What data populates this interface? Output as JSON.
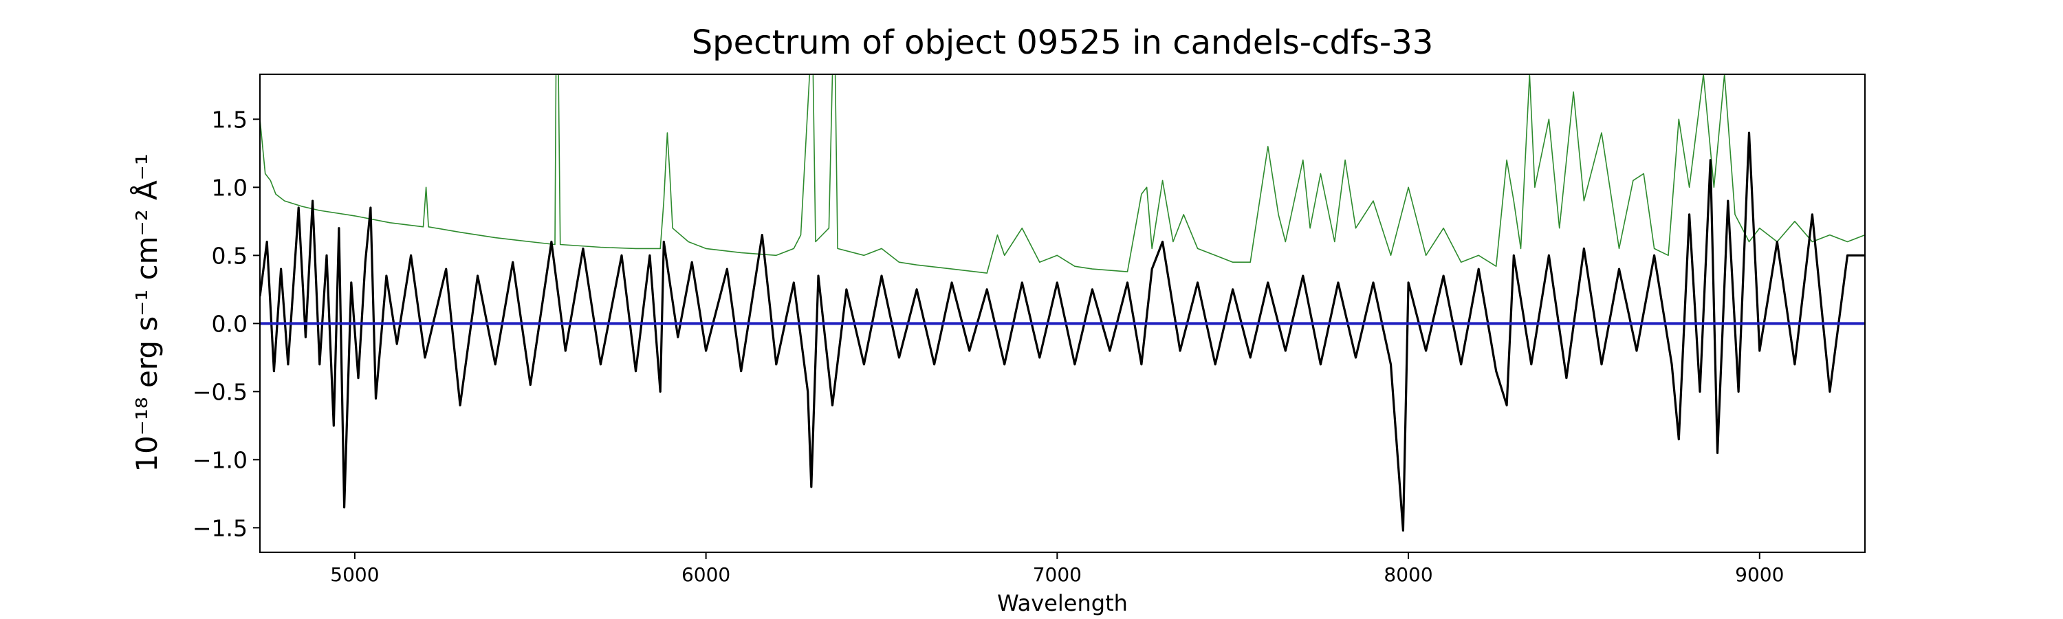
{
  "chart_data": {
    "type": "line",
    "title": "Spectrum of object 09525 in candels-cdfs-33",
    "xlabel": "Wavelength",
    "ylabel": "10⁻¹⁸ erg s⁻¹ cm⁻² Å⁻¹",
    "xlim": [
      4730,
      9300
    ],
    "ylim": [
      -1.68,
      1.83
    ],
    "x_ticks": [
      5000,
      6000,
      7000,
      8000,
      9000
    ],
    "y_ticks": [
      -1.5,
      -1.0,
      -0.5,
      0.0,
      0.5,
      1.0,
      1.5
    ],
    "x_tick_labels": [
      "5000",
      "6000",
      "7000",
      "8000",
      "9000"
    ],
    "y_tick_labels": [
      "−1.5",
      "−1.0",
      "−0.5",
      "0.0",
      "0.5",
      "1.0",
      "1.5"
    ],
    "grid": false,
    "legend": "none",
    "series": [
      {
        "role": "noise",
        "color": "#2e8b2e",
        "points": [
          [
            4730,
            1.5
          ],
          [
            4745,
            1.1
          ],
          [
            4760,
            1.05
          ],
          [
            4775,
            0.95
          ],
          [
            4800,
            0.9
          ],
          [
            4850,
            0.86
          ],
          [
            4900,
            0.83
          ],
          [
            5000,
            0.79
          ],
          [
            5100,
            0.74
          ],
          [
            5195,
            0.71
          ],
          [
            5203,
            1.0
          ],
          [
            5210,
            0.71
          ],
          [
            5300,
            0.67
          ],
          [
            5400,
            0.63
          ],
          [
            5500,
            0.6
          ],
          [
            5570,
            0.58
          ],
          [
            5573,
            1.83
          ],
          [
            5580,
            1.83
          ],
          [
            5585,
            0.58
          ],
          [
            5700,
            0.56
          ],
          [
            5800,
            0.55
          ],
          [
            5870,
            0.55
          ],
          [
            5880,
            0.9
          ],
          [
            5890,
            1.4
          ],
          [
            5897,
            1.1
          ],
          [
            5905,
            0.7
          ],
          [
            5950,
            0.6
          ],
          [
            6000,
            0.55
          ],
          [
            6100,
            0.52
          ],
          [
            6200,
            0.5
          ],
          [
            6250,
            0.55
          ],
          [
            6270,
            0.65
          ],
          [
            6295,
            1.83
          ],
          [
            6305,
            1.83
          ],
          [
            6312,
            0.6
          ],
          [
            6350,
            0.7
          ],
          [
            6360,
            1.83
          ],
          [
            6368,
            1.83
          ],
          [
            6375,
            0.55
          ],
          [
            6450,
            0.5
          ],
          [
            6500,
            0.55
          ],
          [
            6550,
            0.45
          ],
          [
            6600,
            0.43
          ],
          [
            6700,
            0.4
          ],
          [
            6800,
            0.37
          ],
          [
            6830,
            0.65
          ],
          [
            6850,
            0.5
          ],
          [
            6900,
            0.7
          ],
          [
            6950,
            0.45
          ],
          [
            7000,
            0.5
          ],
          [
            7050,
            0.42
          ],
          [
            7100,
            0.4
          ],
          [
            7200,
            0.38
          ],
          [
            7240,
            0.95
          ],
          [
            7255,
            1.0
          ],
          [
            7270,
            0.55
          ],
          [
            7300,
            1.05
          ],
          [
            7330,
            0.6
          ],
          [
            7360,
            0.8
          ],
          [
            7400,
            0.55
          ],
          [
            7450,
            0.5
          ],
          [
            7500,
            0.45
          ],
          [
            7550,
            0.45
          ],
          [
            7600,
            1.3
          ],
          [
            7630,
            0.8
          ],
          [
            7650,
            0.6
          ],
          [
            7700,
            1.2
          ],
          [
            7720,
            0.7
          ],
          [
            7750,
            1.1
          ],
          [
            7790,
            0.6
          ],
          [
            7820,
            1.2
          ],
          [
            7850,
            0.7
          ],
          [
            7900,
            0.9
          ],
          [
            7950,
            0.5
          ],
          [
            8000,
            1.0
          ],
          [
            8050,
            0.5
          ],
          [
            8100,
            0.7
          ],
          [
            8150,
            0.45
          ],
          [
            8200,
            0.5
          ],
          [
            8250,
            0.42
          ],
          [
            8280,
            1.2
          ],
          [
            8300,
            0.9
          ],
          [
            8320,
            0.55
          ],
          [
            8345,
            1.83
          ],
          [
            8360,
            1.0
          ],
          [
            8400,
            1.5
          ],
          [
            8430,
            0.7
          ],
          [
            8470,
            1.7
          ],
          [
            8500,
            0.9
          ],
          [
            8550,
            1.4
          ],
          [
            8600,
            0.55
          ],
          [
            8640,
            1.05
          ],
          [
            8670,
            1.1
          ],
          [
            8700,
            0.55
          ],
          [
            8740,
            0.5
          ],
          [
            8770,
            1.5
          ],
          [
            8800,
            1.0
          ],
          [
            8840,
            1.83
          ],
          [
            8870,
            1.0
          ],
          [
            8900,
            1.83
          ],
          [
            8930,
            0.8
          ],
          [
            8970,
            0.6
          ],
          [
            9000,
            0.7
          ],
          [
            9050,
            0.6
          ],
          [
            9100,
            0.75
          ],
          [
            9150,
            0.6
          ],
          [
            9200,
            0.65
          ],
          [
            9250,
            0.6
          ],
          [
            9300,
            0.65
          ]
        ]
      },
      {
        "role": "flux",
        "color": "#000000",
        "points": [
          [
            4730,
            0.2
          ],
          [
            4750,
            0.6
          ],
          [
            4770,
            -0.35
          ],
          [
            4790,
            0.4
          ],
          [
            4810,
            -0.3
          ],
          [
            4840,
            0.85
          ],
          [
            4860,
            -0.1
          ],
          [
            4880,
            0.9
          ],
          [
            4900,
            -0.3
          ],
          [
            4920,
            0.5
          ],
          [
            4940,
            -0.75
          ],
          [
            4955,
            0.7
          ],
          [
            4970,
            -1.35
          ],
          [
            4990,
            0.3
          ],
          [
            5010,
            -0.4
          ],
          [
            5030,
            0.45
          ],
          [
            5045,
            0.85
          ],
          [
            5060,
            -0.55
          ],
          [
            5090,
            0.35
          ],
          [
            5120,
            -0.15
          ],
          [
            5160,
            0.5
          ],
          [
            5200,
            -0.25
          ],
          [
            5260,
            0.4
          ],
          [
            5300,
            -0.6
          ],
          [
            5350,
            0.35
          ],
          [
            5400,
            -0.3
          ],
          [
            5450,
            0.45
          ],
          [
            5500,
            -0.45
          ],
          [
            5560,
            0.6
          ],
          [
            5600,
            -0.2
          ],
          [
            5650,
            0.55
          ],
          [
            5700,
            -0.3
          ],
          [
            5760,
            0.5
          ],
          [
            5800,
            -0.35
          ],
          [
            5840,
            0.5
          ],
          [
            5870,
            -0.5
          ],
          [
            5880,
            0.6
          ],
          [
            5920,
            -0.1
          ],
          [
            5960,
            0.45
          ],
          [
            6000,
            -0.2
          ],
          [
            6060,
            0.4
          ],
          [
            6100,
            -0.35
          ],
          [
            6160,
            0.65
          ],
          [
            6200,
            -0.3
          ],
          [
            6250,
            0.3
          ],
          [
            6290,
            -0.5
          ],
          [
            6300,
            -1.2
          ],
          [
            6320,
            0.35
          ],
          [
            6360,
            -0.6
          ],
          [
            6400,
            0.25
          ],
          [
            6450,
            -0.3
          ],
          [
            6500,
            0.35
          ],
          [
            6550,
            -0.25
          ],
          [
            6600,
            0.25
          ],
          [
            6650,
            -0.3
          ],
          [
            6700,
            0.3
          ],
          [
            6750,
            -0.2
          ],
          [
            6800,
            0.25
          ],
          [
            6850,
            -0.3
          ],
          [
            6900,
            0.3
          ],
          [
            6950,
            -0.25
          ],
          [
            7000,
            0.3
          ],
          [
            7050,
            -0.3
          ],
          [
            7100,
            0.25
          ],
          [
            7150,
            -0.2
          ],
          [
            7200,
            0.3
          ],
          [
            7240,
            -0.3
          ],
          [
            7270,
            0.4
          ],
          [
            7300,
            0.6
          ],
          [
            7350,
            -0.2
          ],
          [
            7400,
            0.3
          ],
          [
            7450,
            -0.3
          ],
          [
            7500,
            0.25
          ],
          [
            7550,
            -0.25
          ],
          [
            7600,
            0.3
          ],
          [
            7650,
            -0.2
          ],
          [
            7700,
            0.35
          ],
          [
            7750,
            -0.3
          ],
          [
            7800,
            0.3
          ],
          [
            7850,
            -0.25
          ],
          [
            7900,
            0.3
          ],
          [
            7950,
            -0.3
          ],
          [
            7985,
            -1.52
          ],
          [
            8000,
            0.3
          ],
          [
            8050,
            -0.2
          ],
          [
            8100,
            0.35
          ],
          [
            8150,
            -0.3
          ],
          [
            8200,
            0.4
          ],
          [
            8250,
            -0.35
          ],
          [
            8280,
            -0.6
          ],
          [
            8300,
            0.5
          ],
          [
            8350,
            -0.3
          ],
          [
            8400,
            0.5
          ],
          [
            8450,
            -0.4
          ],
          [
            8500,
            0.55
          ],
          [
            8550,
            -0.3
          ],
          [
            8600,
            0.4
          ],
          [
            8650,
            -0.2
          ],
          [
            8700,
            0.5
          ],
          [
            8750,
            -0.3
          ],
          [
            8770,
            -0.85
          ],
          [
            8800,
            0.8
          ],
          [
            8830,
            -0.5
          ],
          [
            8860,
            1.2
          ],
          [
            8880,
            -0.95
          ],
          [
            8910,
            0.9
          ],
          [
            8940,
            -0.5
          ],
          [
            8970,
            1.4
          ],
          [
            9000,
            -0.2
          ],
          [
            9050,
            0.6
          ],
          [
            9100,
            -0.3
          ],
          [
            9150,
            0.8
          ],
          [
            9200,
            -0.5
          ],
          [
            9250,
            0.5
          ],
          [
            9300,
            0.5
          ]
        ]
      },
      {
        "role": "zero-line",
        "color": "#1f1fbf",
        "points": [
          [
            4730,
            0.0
          ],
          [
            9300,
            0.0
          ]
        ]
      }
    ]
  }
}
